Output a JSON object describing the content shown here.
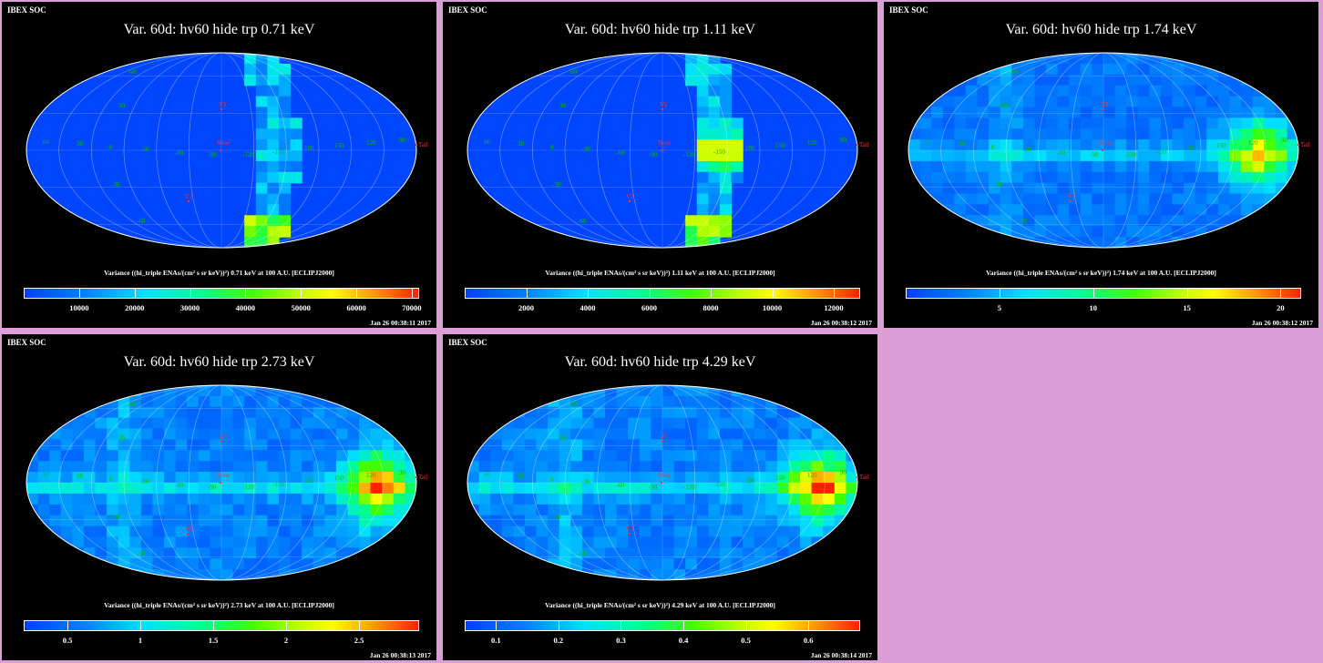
{
  "panels": [
    {
      "org": "IBEX SOC",
      "title": "Var. 60d: hv60 hide trp 0.71 keV",
      "colorbar_label": "Variance ((hi_triple ENAs/(cm² s sr keV))²) 0.71 keV at 100 A.U. [ECLIPJ2000]",
      "ticks": [
        "10000",
        "20000",
        "30000",
        "40000",
        "50000",
        "60000",
        "70000"
      ],
      "tick_values": [
        10000,
        20000,
        30000,
        40000,
        50000,
        60000,
        70000
      ],
      "range": [
        0,
        71000
      ],
      "date": "Jan 26 00:38:11 2017",
      "style": "stripe"
    },
    {
      "org": "IBEX SOC",
      "title": "Var. 60d: hv60 hide trp 1.11 keV",
      "colorbar_label": "Variance ((hi_triple ENAs/(cm² s sr keV))²) 1.11 keV at 100 A.U. [ECLIPJ2000]",
      "ticks": [
        "2000",
        "4000",
        "6000",
        "8000",
        "10000",
        "12000"
      ],
      "tick_values": [
        2000,
        4000,
        6000,
        8000,
        10000,
        12000
      ],
      "range": [
        0,
        12800
      ],
      "date": "Jan 26 00:38:12 2017",
      "style": "stripe"
    },
    {
      "org": "IBEX SOC",
      "title": "Var. 60d: hv60 hide trp 1.74 keV",
      "colorbar_label": "Variance ((hi_triple ENAs/(cm² s sr keV))²) 1.74 keV at 100 A.U. [ECLIPJ2000]",
      "ticks": [
        "5",
        "10",
        "15",
        "20"
      ],
      "tick_values": [
        5,
        10,
        15,
        20
      ],
      "range": [
        0,
        21
      ],
      "date": "Jan 26 00:38:12 2017",
      "style": "full"
    },
    {
      "org": "IBEX SOC",
      "title": "Var. 60d: hv60 hide trp 2.73 keV",
      "colorbar_label": "Variance ((hi_triple ENAs/(cm² s sr keV))²) 2.73 keV at 100 A.U. [ECLIPJ2000]",
      "ticks": [
        "0.5",
        "1",
        "1.5",
        "2",
        "2.5"
      ],
      "tick_values": [
        0.5,
        1,
        1.5,
        2,
        2.5
      ],
      "range": [
        0.2,
        2.9
      ],
      "date": "Jan 26 00:38:13 2017",
      "style": "full"
    },
    {
      "org": "IBEX SOC",
      "title": "Var. 60d: hv60 hide trp 4.29 keV",
      "colorbar_label": "Variance ((hi_triple ENAs/(cm² s sr keV))²) 4.29 keV at 100 A.U. [ECLIPJ2000]",
      "ticks": [
        "0.1",
        "0.2",
        "0.3",
        "0.4",
        "0.5",
        "0.6"
      ],
      "tick_values": [
        0.1,
        0.2,
        0.3,
        0.4,
        0.5,
        0.6
      ],
      "range": [
        0.05,
        0.68
      ],
      "date": "Jan 26 00:38:14 2017",
      "style": "full"
    }
  ],
  "map_labels": {
    "lon": [
      "60",
      "30",
      "0",
      "-30",
      "-60",
      "-90",
      "-120",
      "-150",
      "180",
      "150",
      "120",
      "90"
    ],
    "lat": [
      "60",
      "30",
      "-30",
      "-60"
    ],
    "markers": [
      "V1",
      "V2",
      "Nose",
      "Tail"
    ]
  },
  "colors": {
    "background": "#dd9ed8",
    "panel": "#000000",
    "marker": "#ff3030",
    "grid_label": "#00c000"
  },
  "chart_data": [
    {
      "type": "heatmap",
      "title": "Var. 60d: hv60 hide trp 0.71 keV",
      "projection": "Mollweide",
      "colorbar_range": [
        0,
        71000
      ],
      "colorbar_ticks": [
        10000,
        20000,
        30000,
        40000,
        50000,
        60000,
        70000
      ],
      "unit": "Variance ((hi_triple ENAs/(cm² s sr keV))²)"
    },
    {
      "type": "heatmap",
      "title": "Var. 60d: hv60 hide trp 1.11 keV",
      "projection": "Mollweide",
      "colorbar_range": [
        0,
        12800
      ],
      "colorbar_ticks": [
        2000,
        4000,
        6000,
        8000,
        10000,
        12000
      ],
      "unit": "Variance ((hi_triple ENAs/(cm² s sr keV))²)"
    },
    {
      "type": "heatmap",
      "title": "Var. 60d: hv60 hide trp 1.74 keV",
      "projection": "Mollweide",
      "colorbar_range": [
        0,
        21
      ],
      "colorbar_ticks": [
        5,
        10,
        15,
        20
      ],
      "unit": "Variance ((hi_triple ENAs/(cm² s sr keV))²)"
    },
    {
      "type": "heatmap",
      "title": "Var. 60d: hv60 hide trp 2.73 keV",
      "projection": "Mollweide",
      "colorbar_range": [
        0.2,
        2.9
      ],
      "colorbar_ticks": [
        0.5,
        1,
        1.5,
        2,
        2.5
      ],
      "unit": "Variance ((hi_triple ENAs/(cm² s sr keV))²)"
    },
    {
      "type": "heatmap",
      "title": "Var. 60d: hv60 hide trp 4.29 keV",
      "projection": "Mollweide",
      "colorbar_range": [
        0.05,
        0.68
      ],
      "colorbar_ticks": [
        0.1,
        0.2,
        0.3,
        0.4,
        0.5,
        0.6
      ],
      "unit": "Variance ((hi_triple ENAs/(cm² s sr keV))²)"
    }
  ]
}
